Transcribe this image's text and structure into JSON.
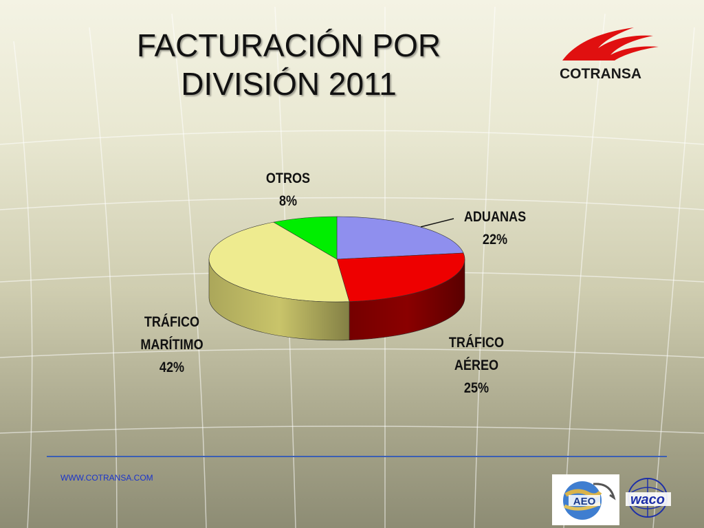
{
  "slide": {
    "title_lines": [
      "FACTURACIÓN POR",
      "DIVISIÓN 2011"
    ],
    "website": "WWW.COTRANSA.COM"
  },
  "logos": {
    "cotransa": "COTRANSA",
    "aeo": "AEO",
    "waco": "waco"
  },
  "colors": {
    "title": "#111111",
    "footer_line": "#3a5fb5",
    "url": "#1a33cc"
  },
  "chart_data": {
    "type": "pie",
    "style": "3d",
    "slices": [
      {
        "label_lines": [
          "ADUANAS"
        ],
        "value": 22,
        "value_text": "22%",
        "color": "#8f8fee",
        "side_color": "#6b6bc4"
      },
      {
        "label_lines": [
          "TRÁFICO",
          "AÉREO"
        ],
        "value": 25,
        "value_text": "25%",
        "color": "#ee0000",
        "side_color": "#8a0000"
      },
      {
        "label_lines": [
          "TRÁFICO",
          "MARÍTIMO"
        ],
        "value": 42,
        "value_text": "42%",
        "color": "#eeeb8f",
        "side_color": "#c9c46a"
      },
      {
        "label_lines": [
          "OTROS"
        ],
        "value": 8,
        "value_text": "8%",
        "color": "#00ee00",
        "side_color": "#00a000"
      }
    ],
    "legend": "none"
  }
}
